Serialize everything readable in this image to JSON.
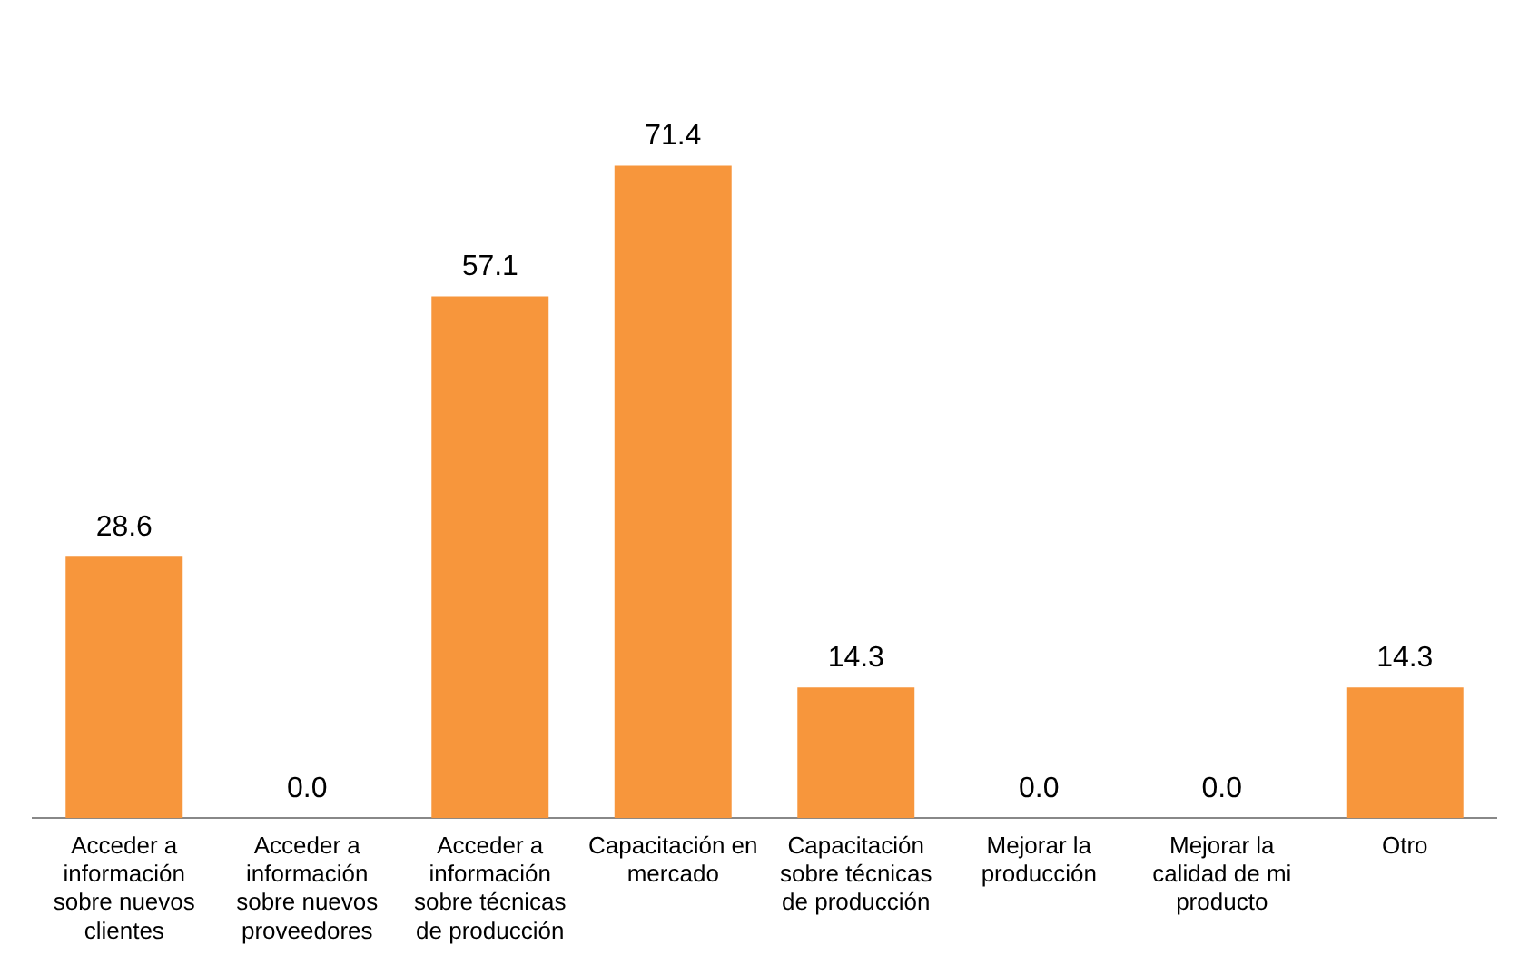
{
  "chart_data": {
    "type": "bar",
    "categories": [
      "Acceder a información sobre nuevos clientes",
      "Acceder a información sobre nuevos proveedores",
      "Acceder a información sobre técnicas de producción",
      "Capacitación en mercado",
      "Capacitación sobre técnicas de producción",
      "Mejorar la producción",
      "Mejorar la calidad de mi producto",
      "Otro"
    ],
    "values": [
      28.6,
      0.0,
      57.1,
      71.4,
      14.3,
      0.0,
      0.0,
      14.3
    ],
    "value_labels": [
      "28.6",
      "0.0",
      "57.1",
      "71.4",
      "14.3",
      "0.0",
      "0.0",
      "14.3"
    ],
    "color": "#f7963c",
    "grid": false,
    "legend": false
  }
}
